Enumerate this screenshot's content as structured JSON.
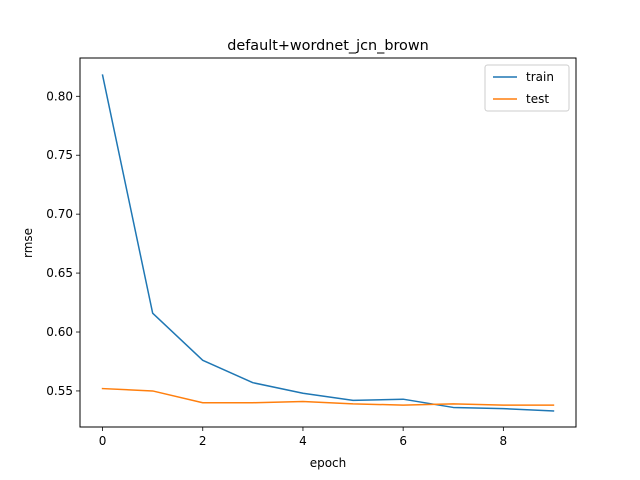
{
  "chart_data": {
    "type": "line",
    "title": "default+wordnet_jcn_brown",
    "xlabel": "epoch",
    "ylabel": "rmse",
    "xlim": [
      -0.45,
      9.45
    ],
    "ylim": [
      0.5194,
      0.8325
    ],
    "xticks": [
      0,
      2,
      4,
      6,
      8
    ],
    "xtick_labels": [
      "0",
      "2",
      "4",
      "6",
      "8"
    ],
    "yticks": [
      0.55,
      0.6,
      0.65,
      0.7,
      0.75,
      0.8
    ],
    "ytick_labels": [
      "0.55",
      "0.60",
      "0.65",
      "0.70",
      "0.75",
      "0.80"
    ],
    "grid": false,
    "legend_position": "top-right",
    "x": [
      0,
      1,
      2,
      3,
      4,
      5,
      6,
      7,
      8,
      9
    ],
    "series": [
      {
        "name": "train",
        "color": "#1f77b4",
        "values": [
          0.818,
          0.616,
          0.576,
          0.557,
          0.548,
          0.542,
          0.543,
          0.536,
          0.535,
          0.533
        ]
      },
      {
        "name": "test",
        "color": "#ff7f0e",
        "values": [
          0.552,
          0.55,
          0.54,
          0.54,
          0.541,
          0.539,
          0.538,
          0.539,
          0.538,
          0.538
        ]
      }
    ]
  }
}
